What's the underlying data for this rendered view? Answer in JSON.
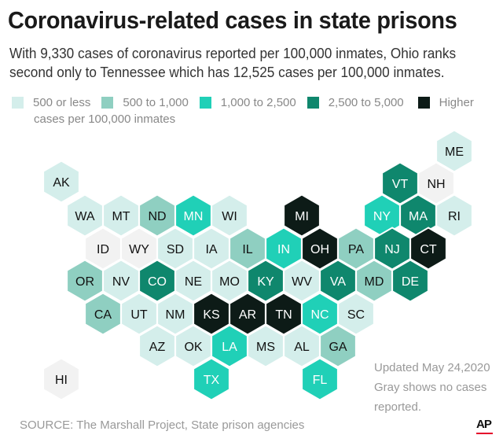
{
  "header": {
    "title": "Coronavirus-related cases in state prisons",
    "subtitle": "With 9,330 cases of coronavirus reported per 100,000 inmates, Ohio ranks second only to Tennessee which has 12,525 cases per 100,000 inmates."
  },
  "legend": {
    "items": [
      {
        "label": "500 or less",
        "color": "#d4eeeb"
      },
      {
        "label": "500 to 1,000",
        "color": "#8fcfc1"
      },
      {
        "label": "1,000 to 2,500",
        "color": "#20d0b7"
      },
      {
        "label": "2,500 to 5,000",
        "color": "#0f876d"
      },
      {
        "label": "Higher",
        "color": "#0d1b17"
      }
    ],
    "unit": "cases per 100,000 inmates",
    "no_data_color": "#f2f2f2"
  },
  "states": [
    {
      "abbr": "AK",
      "cat": 0
    },
    {
      "abbr": "ME",
      "cat": 0
    },
    {
      "abbr": "VT",
      "cat": 3
    },
    {
      "abbr": "NH",
      "cat": -1
    },
    {
      "abbr": "WA",
      "cat": 0
    },
    {
      "abbr": "MT",
      "cat": 0
    },
    {
      "abbr": "ND",
      "cat": 1
    },
    {
      "abbr": "MN",
      "cat": 2
    },
    {
      "abbr": "WI",
      "cat": 0
    },
    {
      "abbr": "MI",
      "cat": 4
    },
    {
      "abbr": "NY",
      "cat": 2
    },
    {
      "abbr": "MA",
      "cat": 3
    },
    {
      "abbr": "RI",
      "cat": 0
    },
    {
      "abbr": "ID",
      "cat": -1
    },
    {
      "abbr": "WY",
      "cat": -1
    },
    {
      "abbr": "SD",
      "cat": 0
    },
    {
      "abbr": "IA",
      "cat": 0
    },
    {
      "abbr": "IL",
      "cat": 1
    },
    {
      "abbr": "IN",
      "cat": 2
    },
    {
      "abbr": "OH",
      "cat": 4
    },
    {
      "abbr": "PA",
      "cat": 1
    },
    {
      "abbr": "NJ",
      "cat": 3
    },
    {
      "abbr": "CT",
      "cat": 4
    },
    {
      "abbr": "OR",
      "cat": 1
    },
    {
      "abbr": "NV",
      "cat": 0
    },
    {
      "abbr": "CO",
      "cat": 3
    },
    {
      "abbr": "NE",
      "cat": 0
    },
    {
      "abbr": "MO",
      "cat": 0
    },
    {
      "abbr": "KY",
      "cat": 3
    },
    {
      "abbr": "WV",
      "cat": 0
    },
    {
      "abbr": "VA",
      "cat": 3
    },
    {
      "abbr": "MD",
      "cat": 1
    },
    {
      "abbr": "DE",
      "cat": 3
    },
    {
      "abbr": "CA",
      "cat": 1
    },
    {
      "abbr": "UT",
      "cat": 0
    },
    {
      "abbr": "NM",
      "cat": 0
    },
    {
      "abbr": "KS",
      "cat": 4
    },
    {
      "abbr": "AR",
      "cat": 4
    },
    {
      "abbr": "TN",
      "cat": 4
    },
    {
      "abbr": "NC",
      "cat": 2
    },
    {
      "abbr": "SC",
      "cat": 0
    },
    {
      "abbr": "AZ",
      "cat": 0
    },
    {
      "abbr": "OK",
      "cat": 0
    },
    {
      "abbr": "LA",
      "cat": 2
    },
    {
      "abbr": "MS",
      "cat": 0
    },
    {
      "abbr": "AL",
      "cat": 0
    },
    {
      "abbr": "GA",
      "cat": 1
    },
    {
      "abbr": "TX",
      "cat": 2
    },
    {
      "abbr": "FL",
      "cat": 2
    },
    {
      "abbr": "HI",
      "cat": -1
    }
  ],
  "notes": {
    "updated": "Updated May 24,2020",
    "gray_note": "Gray shows no cases reported."
  },
  "footer": {
    "source": "SOURCE: The Marshall Project, State prison agencies",
    "logo": "AP"
  }
}
